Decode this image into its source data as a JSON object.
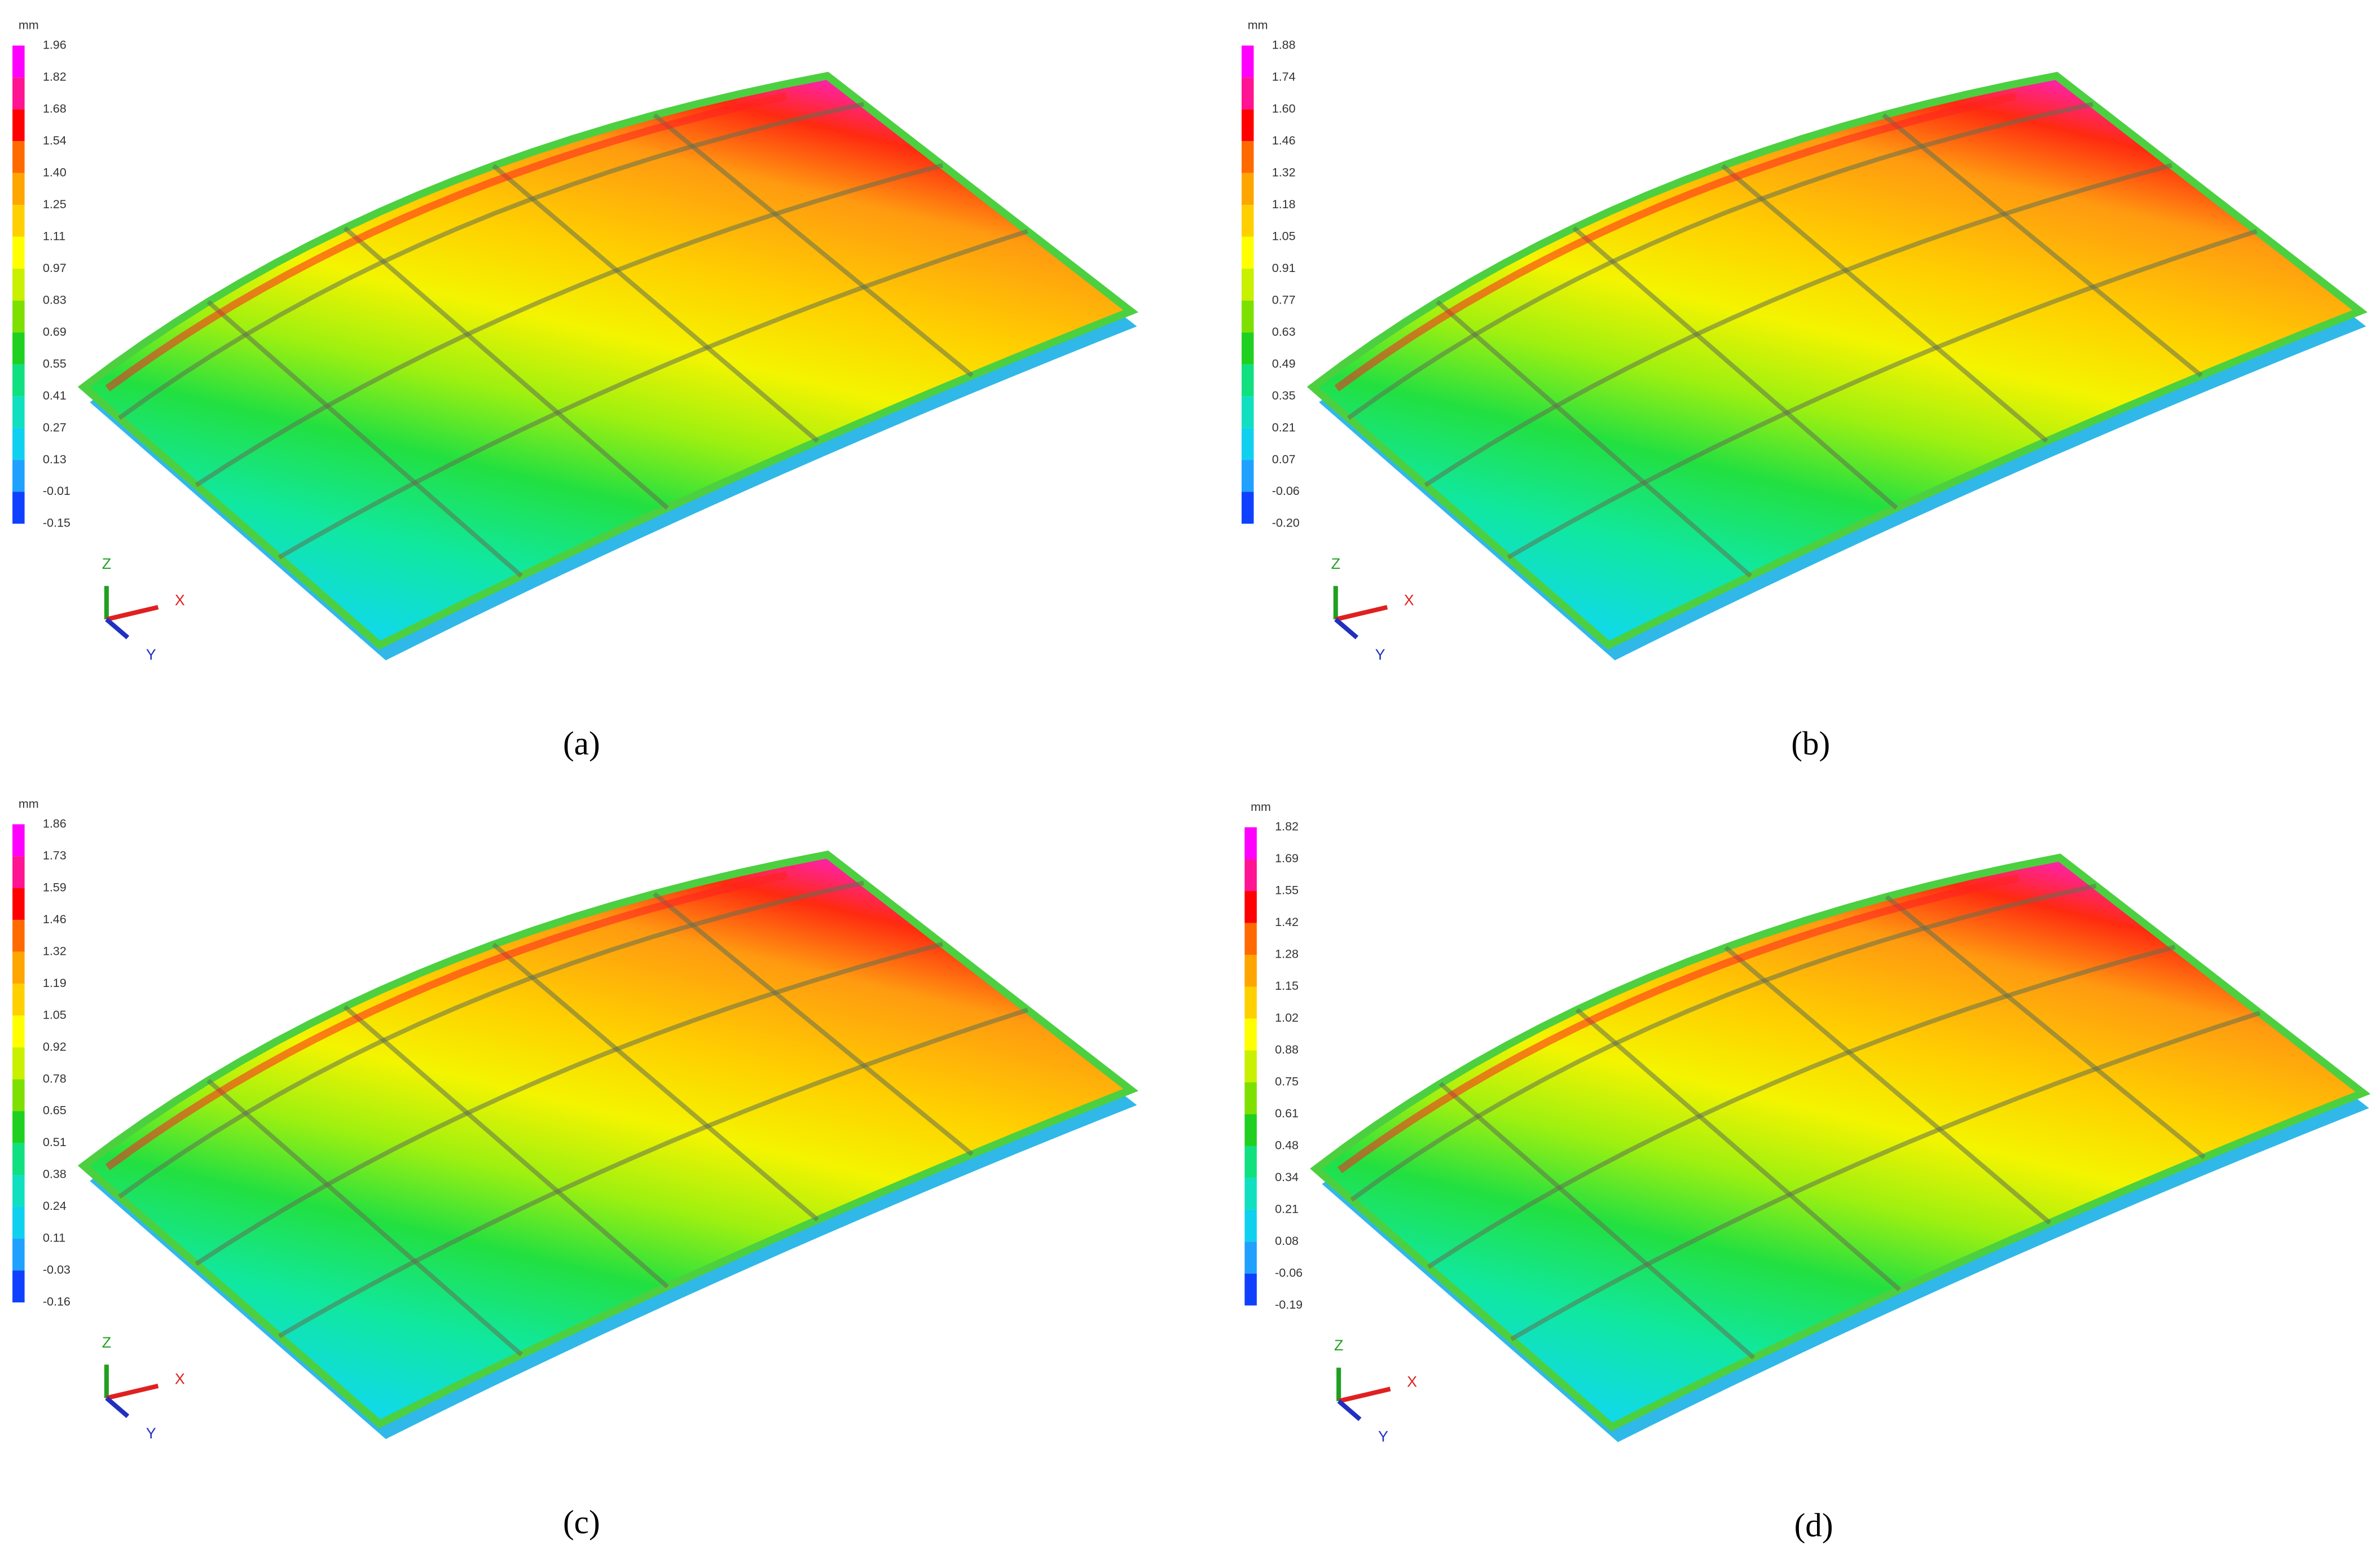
{
  "panels": [
    {
      "caption": "(a)",
      "unit": "mm",
      "axes": {
        "z": "Z",
        "x": "X",
        "y": "Y"
      },
      "legend": [
        "1.96",
        "1.82",
        "1.68",
        "1.54",
        "1.40",
        "1.25",
        "1.11",
        "0.97",
        "0.83",
        "0.69",
        "0.55",
        "0.41",
        "0.27",
        "0.13",
        "-0.01",
        "-0.15"
      ]
    },
    {
      "caption": "(b)",
      "unit": "mm",
      "axes": {
        "z": "Z",
        "x": "X",
        "y": "Y"
      },
      "legend": [
        "1.88",
        "1.74",
        "1.60",
        "1.46",
        "1.32",
        "1.18",
        "1.05",
        "0.91",
        "0.77",
        "0.63",
        "0.49",
        "0.35",
        "0.21",
        "0.07",
        "-0.06",
        "-0.20"
      ]
    },
    {
      "caption": "(c)",
      "unit": "mm",
      "axes": {
        "z": "Z",
        "x": "X",
        "y": "Y"
      },
      "legend": [
        "1.86",
        "1.73",
        "1.59",
        "1.46",
        "1.32",
        "1.19",
        "1.05",
        "0.92",
        "0.78",
        "0.65",
        "0.51",
        "0.38",
        "0.24",
        "0.11",
        "-0.03",
        "-0.16"
      ]
    },
    {
      "caption": "(d)",
      "unit": "mm",
      "axes": {
        "z": "Z",
        "x": "X",
        "y": "Y"
      },
      "legend": [
        "1.82",
        "1.69",
        "1.55",
        "1.42",
        "1.28",
        "1.15",
        "1.02",
        "0.88",
        "0.75",
        "0.61",
        "0.48",
        "0.34",
        "0.21",
        "0.08",
        "-0.06",
        "-0.19"
      ]
    }
  ]
}
